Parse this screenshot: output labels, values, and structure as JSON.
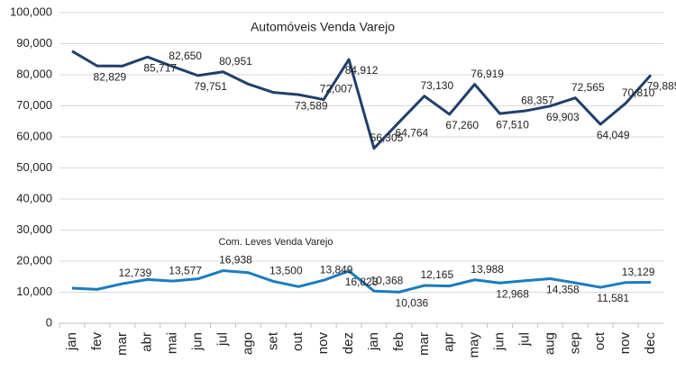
{
  "chart_data": {
    "type": "line",
    "categories": [
      "jan",
      "fev",
      "mar",
      "abr",
      "mai",
      "jun",
      "jul",
      "ago",
      "set",
      "out",
      "nov",
      "dez",
      "jan",
      "feb",
      "mar",
      "apr",
      "may",
      "jun",
      "jul",
      "aug",
      "sep",
      "oct",
      "nov",
      "dec"
    ],
    "series": [
      {
        "name": "Automóveis Venda Varejo",
        "color": "#203f6b",
        "values": [
          87600,
          82829,
          82800,
          85717,
          82650,
          79751,
          80951,
          77000,
          74300,
          73589,
          72007,
          84912,
          56305,
          64764,
          73130,
          67260,
          76919,
          67510,
          68357,
          69903,
          72565,
          64049,
          70810,
          79885
        ],
        "value_labels": [
          null,
          "82,829",
          null,
          "85,717",
          "82,650",
          "79,751",
          "80,951",
          null,
          null,
          "73,589",
          "72,007",
          "84,912",
          "56,305",
          "64,764",
          "73,130",
          "67,260",
          "76,919",
          "67,510",
          "68,357",
          "69,903",
          "72,565",
          "64,049",
          "70,810",
          "79,885"
        ]
      },
      {
        "name": "Com. Leves Venda Varejo",
        "color": "#1b7bc0",
        "values": [
          11300,
          10900,
          12739,
          14100,
          13577,
          14300,
          16938,
          16300,
          13500,
          11800,
          13849,
          16823,
          10368,
          10036,
          12165,
          12000,
          13988,
          12968,
          13700,
          14358,
          13000,
          11581,
          13129,
          13200
        ],
        "value_labels": [
          null,
          null,
          "12,739",
          null,
          "13,577",
          null,
          "16,938",
          null,
          "13,500",
          null,
          "13,849",
          "16,823",
          "10,368",
          "10,036",
          "12,165",
          null,
          "13,988",
          "12,968",
          null,
          "14,358",
          null,
          "11,581",
          "13,129",
          null
        ]
      }
    ],
    "ylim": [
      0,
      100000
    ],
    "yticks": [
      0,
      {
        "value": 10000,
        "label": "10,000"
      },
      {
        "value": 20000,
        "label": "20,000"
      },
      {
        "value": 30000,
        "label": "30,000"
      },
      {
        "value": 40000,
        "label": "40,000"
      },
      {
        "value": 50000,
        "label": "50,000"
      },
      {
        "value": 60000,
        "label": "60,000"
      },
      {
        "value": 70000,
        "label": "70,000"
      },
      {
        "value": 80000,
        "label": "80,000"
      },
      {
        "value": 90000,
        "label": "90,000"
      },
      {
        "value": 100000,
        "label": "100,000"
      }
    ],
    "grid": true
  }
}
